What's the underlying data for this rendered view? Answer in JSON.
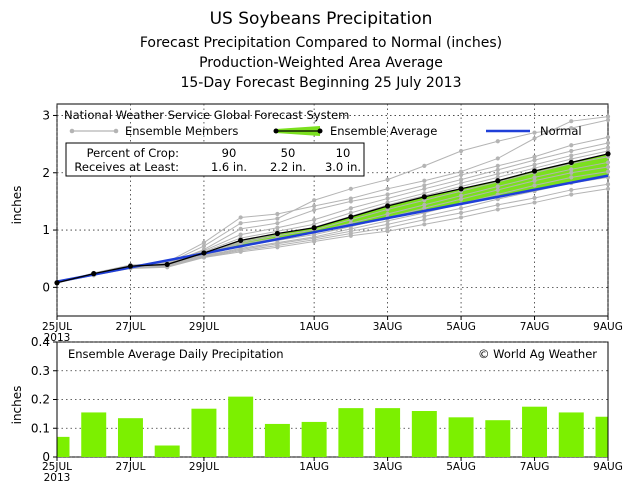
{
  "titles": {
    "line1": "US Soybeans Precipitation",
    "line2": "Forecast Precipitation Compared to Normal (inches)",
    "line3": "Production-Weighted Area Average",
    "line4": "15-Day Forecast Beginning 25 July 2013"
  },
  "colors": {
    "ensemble_members": "#b4b4b4",
    "ensemble_average": "#000000",
    "above_normal_fill": "#7be01e",
    "normal": "#1f3fd8",
    "bars": "#7cf000"
  },
  "chart_data": [
    {
      "type": "line",
      "panel_title": "National Weather Service Global Forecast System",
      "ylabel": "inches",
      "ylim": [
        -0.5,
        3.2
      ],
      "yticks": [
        "0",
        "1",
        "2",
        "3"
      ],
      "grid": true,
      "x_tick_labels": [
        "25JUL",
        "27JUL",
        "29JUL",
        "1AUG",
        "3AUG",
        "5AUG",
        "7AUG",
        "9AUG"
      ],
      "x_year_label": "2013",
      "legend": {
        "members_label": "Ensemble Members",
        "average_label": "Ensemble Average",
        "normal_label": "Normal"
      },
      "crop_table": {
        "row1_label": "Percent of Crop:",
        "row1_values": [
          "90",
          "50",
          "10"
        ],
        "row2_label": "Receives at Least:",
        "row2_values": [
          "1.6 in.",
          "2.2 in.",
          "3.0 in."
        ]
      },
      "normal_series": {
        "name": "Normal",
        "day": [
          0,
          15
        ],
        "values": [
          0.1,
          1.95
        ]
      },
      "ensemble_average": {
        "name": "Ensemble Average",
        "day": [
          0,
          1,
          2,
          3,
          4,
          5,
          6,
          7,
          8,
          9,
          10,
          11,
          12,
          13,
          14,
          15
        ],
        "values": [
          0.08,
          0.24,
          0.37,
          0.4,
          0.6,
          0.82,
          0.94,
          1.04,
          1.23,
          1.42,
          1.58,
          1.72,
          1.86,
          2.03,
          2.18,
          2.33
        ]
      },
      "ensemble_members": [
        [
          0.08,
          0.24,
          0.38,
          0.44,
          0.78,
          1.22,
          1.28,
          1.42,
          1.55,
          1.72,
          1.86,
          2.02,
          2.25,
          2.6,
          2.9,
          2.98
        ],
        [
          0.08,
          0.23,
          0.37,
          0.42,
          0.72,
          1.12,
          1.2,
          1.52,
          1.72,
          1.88,
          2.12,
          2.38,
          2.55,
          2.7,
          2.78,
          2.92
        ],
        [
          0.08,
          0.23,
          0.36,
          0.41,
          0.66,
          1.02,
          1.12,
          1.35,
          1.5,
          1.62,
          1.78,
          1.96,
          2.12,
          2.28,
          2.48,
          2.62
        ],
        [
          0.08,
          0.24,
          0.38,
          0.43,
          0.64,
          0.92,
          1.04,
          1.18,
          1.38,
          1.55,
          1.72,
          1.88,
          2.05,
          2.22,
          2.38,
          2.52
        ],
        [
          0.08,
          0.25,
          0.39,
          0.42,
          0.62,
          0.86,
          0.98,
          1.1,
          1.3,
          1.48,
          1.64,
          1.82,
          1.98,
          2.14,
          2.3,
          2.44
        ],
        [
          0.08,
          0.23,
          0.36,
          0.4,
          0.6,
          0.8,
          0.93,
          1.05,
          1.24,
          1.44,
          1.6,
          1.76,
          1.92,
          2.08,
          2.24,
          2.38
        ],
        [
          0.08,
          0.24,
          0.37,
          0.4,
          0.58,
          0.78,
          0.9,
          1.0,
          1.18,
          1.36,
          1.52,
          1.68,
          1.84,
          2.0,
          2.16,
          2.28
        ],
        [
          0.08,
          0.23,
          0.36,
          0.39,
          0.57,
          0.76,
          0.86,
          0.96,
          1.12,
          1.28,
          1.44,
          1.6,
          1.76,
          1.92,
          2.06,
          2.18
        ],
        [
          0.08,
          0.24,
          0.37,
          0.4,
          0.56,
          0.72,
          0.82,
          0.92,
          1.06,
          1.22,
          1.38,
          1.54,
          1.7,
          1.86,
          2.0,
          2.1
        ],
        [
          0.08,
          0.23,
          0.36,
          0.38,
          0.55,
          0.68,
          0.78,
          0.88,
          1.02,
          1.16,
          1.3,
          1.46,
          1.62,
          1.78,
          1.92,
          2.02
        ],
        [
          0.08,
          0.22,
          0.35,
          0.37,
          0.54,
          0.66,
          0.76,
          0.86,
          0.98,
          1.1,
          1.24,
          1.38,
          1.54,
          1.68,
          1.82,
          1.92
        ],
        [
          0.08,
          0.22,
          0.34,
          0.36,
          0.53,
          0.64,
          0.73,
          0.83,
          0.94,
          1.04,
          1.18,
          1.3,
          1.44,
          1.56,
          1.7,
          1.8
        ],
        [
          0.08,
          0.21,
          0.33,
          0.35,
          0.52,
          0.62,
          0.7,
          0.8,
          0.9,
          0.98,
          1.1,
          1.22,
          1.36,
          1.48,
          1.62,
          1.72
        ]
      ]
    },
    {
      "type": "bar",
      "panel_title": "Ensemble Average Daily Precipitation",
      "credit": "© World Ag Weather",
      "ylabel": "inches",
      "ylim": [
        0,
        0.4
      ],
      "yticks": [
        "0",
        "0.1",
        "0.2",
        "0.3",
        "0.4"
      ],
      "grid": true,
      "x_tick_labels": [
        "25JUL",
        "27JUL",
        "29JUL",
        "1AUG",
        "3AUG",
        "5AUG",
        "7AUG",
        "9AUG"
      ],
      "x_year_label": "2013",
      "day": [
        0,
        1,
        2,
        3,
        4,
        5,
        6,
        7,
        8,
        9,
        10,
        11,
        12,
        13,
        14,
        15
      ],
      "values": [
        0.07,
        0.155,
        0.135,
        0.04,
        0.168,
        0.21,
        0.115,
        0.122,
        0.17,
        0.17,
        0.16,
        0.138,
        0.128,
        0.175,
        0.155,
        0.14
      ]
    }
  ]
}
